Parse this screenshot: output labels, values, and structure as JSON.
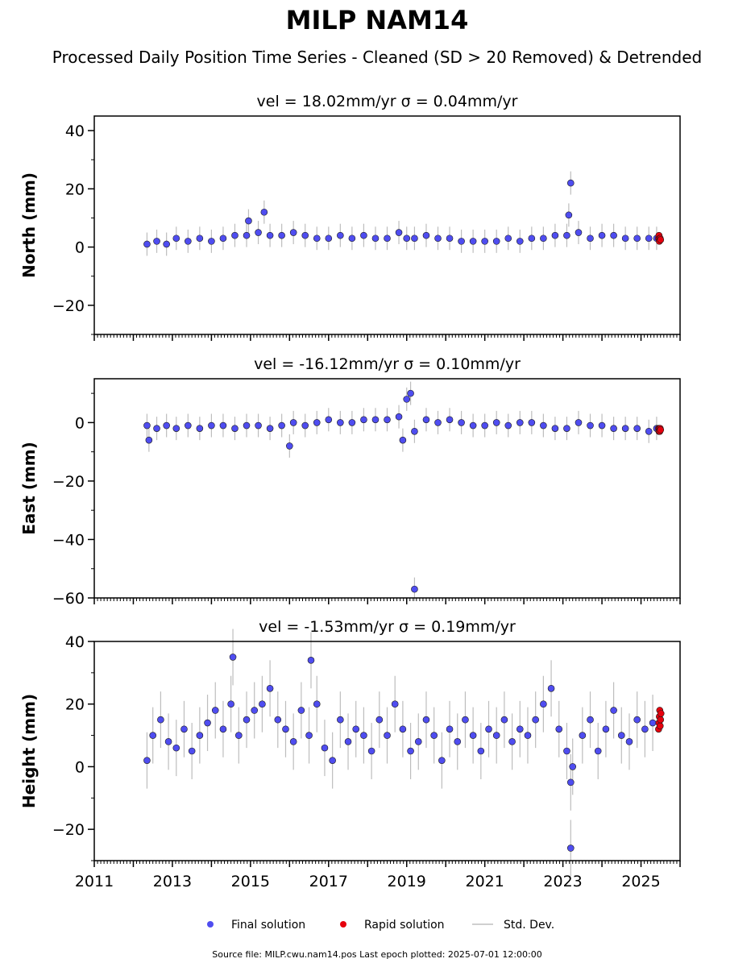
{
  "figure": {
    "title": "MILP NAM14",
    "subtitle": "Processed Daily Position Time Series - Cleaned (SD > 20 Removed) & Detrended",
    "source_note": "Source file: MILP.cwu.nam14.pos  Last epoch plotted: 2025-07-01 12:00:00"
  },
  "legend": {
    "placement": "bottom-center",
    "items": [
      {
        "label": "Final solution",
        "color": "#4f4df0",
        "kind": "marker"
      },
      {
        "label": "Rapid solution",
        "color": "#e6000d",
        "kind": "marker"
      },
      {
        "label": "Std. Dev.",
        "color": "#cfcfcf",
        "kind": "line"
      }
    ]
  },
  "colors": {
    "final": "#4f4df0",
    "rapid": "#e6000d",
    "stddev": "#bdbdbd",
    "marker_edge": "#1a1a1a"
  },
  "chart_data": [
    {
      "type": "scatter",
      "title_prefix": "vel = ",
      "title_vel": "18.02mm/yr",
      "title_sigma_prefix": "σ = ",
      "title_sigma": "0.04mm/yr",
      "ylabel": "North (mm)",
      "ylim": [
        -30,
        45
      ],
      "xlim": [
        2011,
        2026
      ],
      "yticks": [
        -20,
        0,
        20,
        40
      ],
      "ytick_labels": [
        "−20",
        "0",
        "20",
        "40"
      ],
      "xtick_labels_visible": false,
      "series": [
        {
          "name": "Final solution",
          "x": [
            2012.35,
            2012.6,
            2012.85,
            2013.1,
            2013.4,
            2013.7,
            2014.0,
            2014.3,
            2014.6,
            2014.9,
            2015.2,
            2015.5,
            2015.8,
            2016.1,
            2016.4,
            2016.7,
            2017.0,
            2017.3,
            2017.6,
            2017.9,
            2018.2,
            2018.5,
            2018.8,
            2019.0,
            2019.2,
            2019.5,
            2019.8,
            2020.1,
            2020.4,
            2020.7,
            2021.0,
            2021.3,
            2021.6,
            2021.9,
            2022.2,
            2022.5,
            2022.8,
            2023.1,
            2023.4,
            2023.7,
            2024.0,
            2024.3,
            2024.6,
            2024.9,
            2025.2,
            2025.4,
            2015.35,
            2023.2,
            2023.15,
            2014.95
          ],
          "y": [
            1,
            2,
            1,
            3,
            2,
            3,
            2,
            3,
            4,
            4,
            5,
            4,
            4,
            5,
            4,
            3,
            3,
            4,
            3,
            4,
            3,
            3,
            5,
            3,
            3,
            4,
            3,
            3,
            2,
            2,
            2,
            2,
            3,
            2,
            3,
            3,
            4,
            4,
            5,
            3,
            4,
            4,
            3,
            3,
            3,
            3,
            12,
            22,
            11,
            9
          ]
        },
        {
          "name": "Rapid solution",
          "x": [
            2025.45,
            2025.46,
            2025.47,
            2025.48,
            2025.49,
            2025.5
          ],
          "y": [
            3,
            4,
            2,
            3,
            3,
            2.5
          ]
        }
      ]
    },
    {
      "type": "scatter",
      "title_prefix": "vel = ",
      "title_vel": "-16.12mm/yr",
      "title_sigma_prefix": "σ = ",
      "title_sigma": "0.10mm/yr",
      "ylabel": "East (mm)",
      "ylim": [
        -60,
        15
      ],
      "xlim": [
        2011,
        2026
      ],
      "yticks": [
        -60,
        -40,
        -20,
        0
      ],
      "ytick_labels": [
        "−60",
        "−40",
        "−20",
        "0"
      ],
      "xtick_labels_visible": false,
      "series": [
        {
          "name": "Final solution",
          "x": [
            2012.35,
            2012.6,
            2012.85,
            2013.1,
            2013.4,
            2013.7,
            2014.0,
            2014.3,
            2014.6,
            2014.9,
            2015.2,
            2015.5,
            2015.8,
            2016.1,
            2016.4,
            2016.7,
            2017.0,
            2017.3,
            2017.6,
            2017.9,
            2018.2,
            2018.5,
            2018.8,
            2018.9,
            2019.0,
            2019.1,
            2019.2,
            2019.5,
            2019.8,
            2020.1,
            2020.4,
            2020.7,
            2021.0,
            2021.3,
            2021.6,
            2021.9,
            2022.2,
            2022.5,
            2022.8,
            2023.1,
            2023.4,
            2023.7,
            2024.0,
            2024.3,
            2024.6,
            2024.9,
            2025.2,
            2025.4,
            2012.4,
            2016.0,
            2019.2
          ],
          "y": [
            -1,
            -2,
            -1,
            -2,
            -1,
            -2,
            -1,
            -1,
            -2,
            -1,
            -1,
            -2,
            -1,
            0,
            -1,
            0,
            1,
            0,
            0,
            1,
            1,
            1,
            2,
            -6,
            8,
            10,
            -3,
            1,
            0,
            1,
            0,
            -1,
            -1,
            0,
            -1,
            0,
            0,
            -1,
            -2,
            -2,
            0,
            -1,
            -1,
            -2,
            -2,
            -2,
            -3,
            -2,
            -6,
            -8,
            -57
          ]
        },
        {
          "name": "Rapid solution",
          "x": [
            2025.45,
            2025.46,
            2025.47,
            2025.48,
            2025.49,
            2025.5
          ],
          "y": [
            -2,
            -3,
            -2,
            -3,
            -2,
            -2.5
          ]
        }
      ]
    },
    {
      "type": "scatter",
      "title_prefix": "vel = ",
      "title_vel": "-1.53mm/yr",
      "title_sigma_prefix": "σ = ",
      "title_sigma": "0.19mm/yr",
      "ylabel": "Height (mm)",
      "ylim": [
        -30,
        40
      ],
      "xlim": [
        2011,
        2026
      ],
      "yticks": [
        -20,
        0,
        20,
        40
      ],
      "ytick_labels": [
        "−20",
        "0",
        "20",
        "40"
      ],
      "xtick_labels_visible": true,
      "xticks": [
        2011,
        2013,
        2015,
        2017,
        2019,
        2021,
        2023,
        2025
      ],
      "xtick_labels": [
        "2011",
        "2013",
        "2015",
        "2017",
        "2019",
        "2021",
        "2023",
        "2025"
      ],
      "series": [
        {
          "name": "Final solution",
          "x": [
            2012.35,
            2012.5,
            2012.7,
            2012.9,
            2013.1,
            2013.3,
            2013.5,
            2013.7,
            2013.9,
            2014.1,
            2014.3,
            2014.5,
            2014.7,
            2014.9,
            2015.1,
            2015.3,
            2015.5,
            2015.7,
            2015.9,
            2016.1,
            2016.3,
            2016.5,
            2016.7,
            2016.9,
            2017.1,
            2017.3,
            2017.5,
            2017.7,
            2017.9,
            2018.1,
            2018.3,
            2018.5,
            2018.7,
            2018.9,
            2019.1,
            2019.3,
            2019.5,
            2019.7,
            2019.9,
            2020.1,
            2020.3,
            2020.5,
            2020.7,
            2020.9,
            2021.1,
            2021.3,
            2021.5,
            2021.7,
            2021.9,
            2022.1,
            2022.3,
            2022.5,
            2022.7,
            2022.9,
            2023.1,
            2023.2,
            2023.25,
            2023.5,
            2023.7,
            2023.9,
            2024.1,
            2024.3,
            2024.5,
            2024.7,
            2024.9,
            2025.1,
            2025.3,
            2014.55,
            2016.55,
            2023.2
          ],
          "y": [
            2,
            10,
            15,
            8,
            6,
            12,
            5,
            10,
            14,
            18,
            12,
            20,
            10,
            15,
            18,
            20,
            25,
            15,
            12,
            8,
            18,
            10,
            20,
            6,
            2,
            15,
            8,
            12,
            10,
            5,
            15,
            10,
            20,
            12,
            5,
            8,
            15,
            10,
            2,
            12,
            8,
            15,
            10,
            5,
            12,
            10,
            15,
            8,
            12,
            10,
            15,
            20,
            25,
            12,
            5,
            -5,
            0,
            10,
            15,
            5,
            12,
            18,
            10,
            8,
            15,
            12,
            14,
            35,
            34,
            -26
          ]
        },
        {
          "name": "Rapid solution",
          "x": [
            2025.45,
            2025.46,
            2025.47,
            2025.48,
            2025.49,
            2025.5,
            2025.51
          ],
          "y": [
            12,
            14,
            16,
            18,
            13,
            15,
            17
          ]
        }
      ]
    }
  ]
}
